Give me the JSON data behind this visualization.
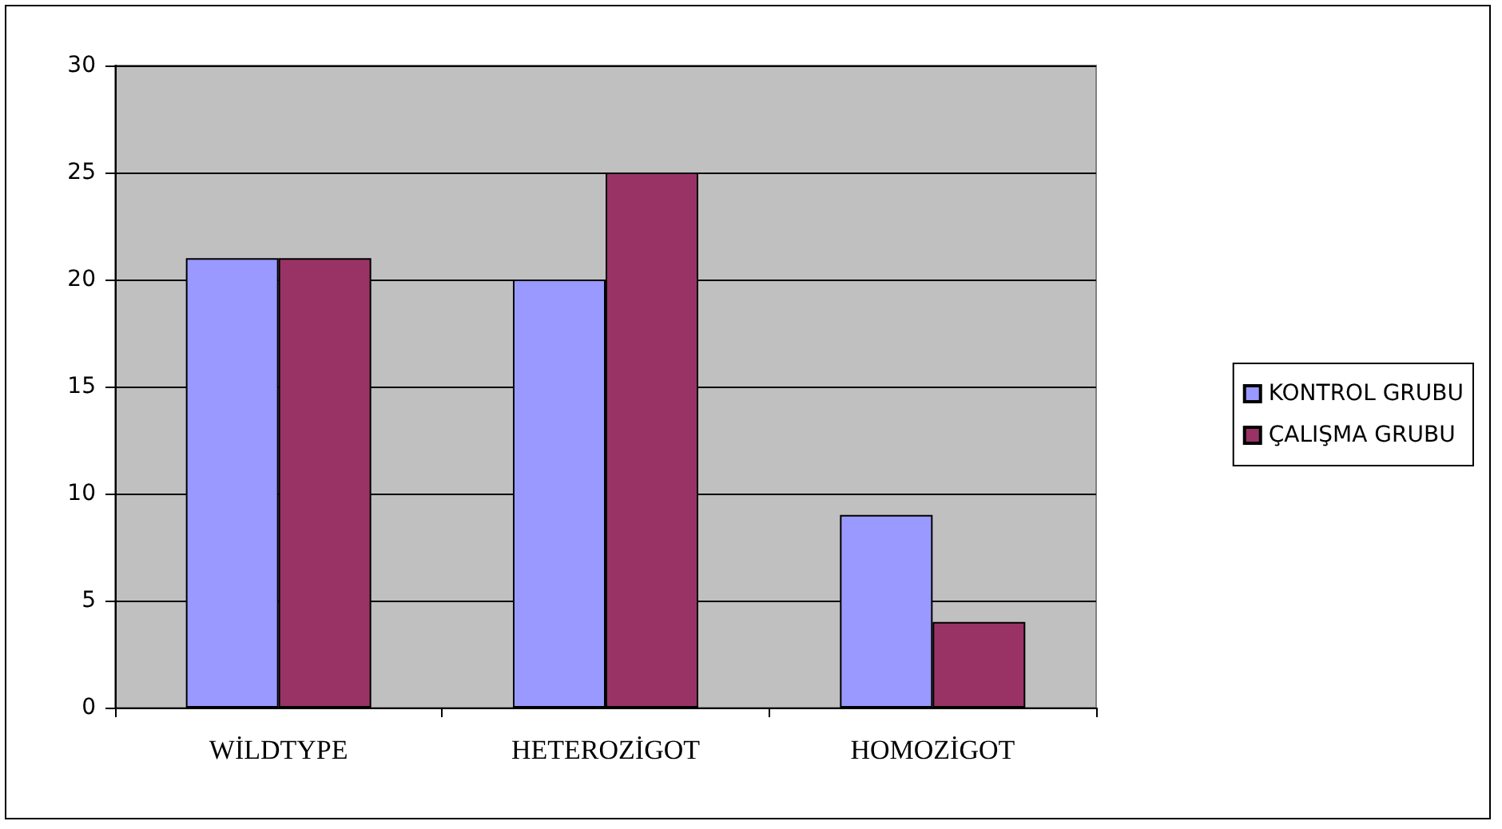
{
  "chart_data": {
    "type": "bar",
    "categories": [
      "WİLDTYPE",
      "HETEROZİGOT",
      "HOMOZİGOT"
    ],
    "series": [
      {
        "name": "KONTROL GRUBU",
        "color": "#9999ff",
        "values": [
          21,
          20,
          9
        ]
      },
      {
        "name": "ÇALIŞMA GRUBU",
        "color": "#993366",
        "values": [
          21,
          25,
          4
        ]
      }
    ],
    "ylim": [
      0,
      30
    ],
    "yticks": [
      0,
      5,
      10,
      15,
      20,
      25,
      30
    ],
    "grid": "y",
    "legend": "right"
  }
}
